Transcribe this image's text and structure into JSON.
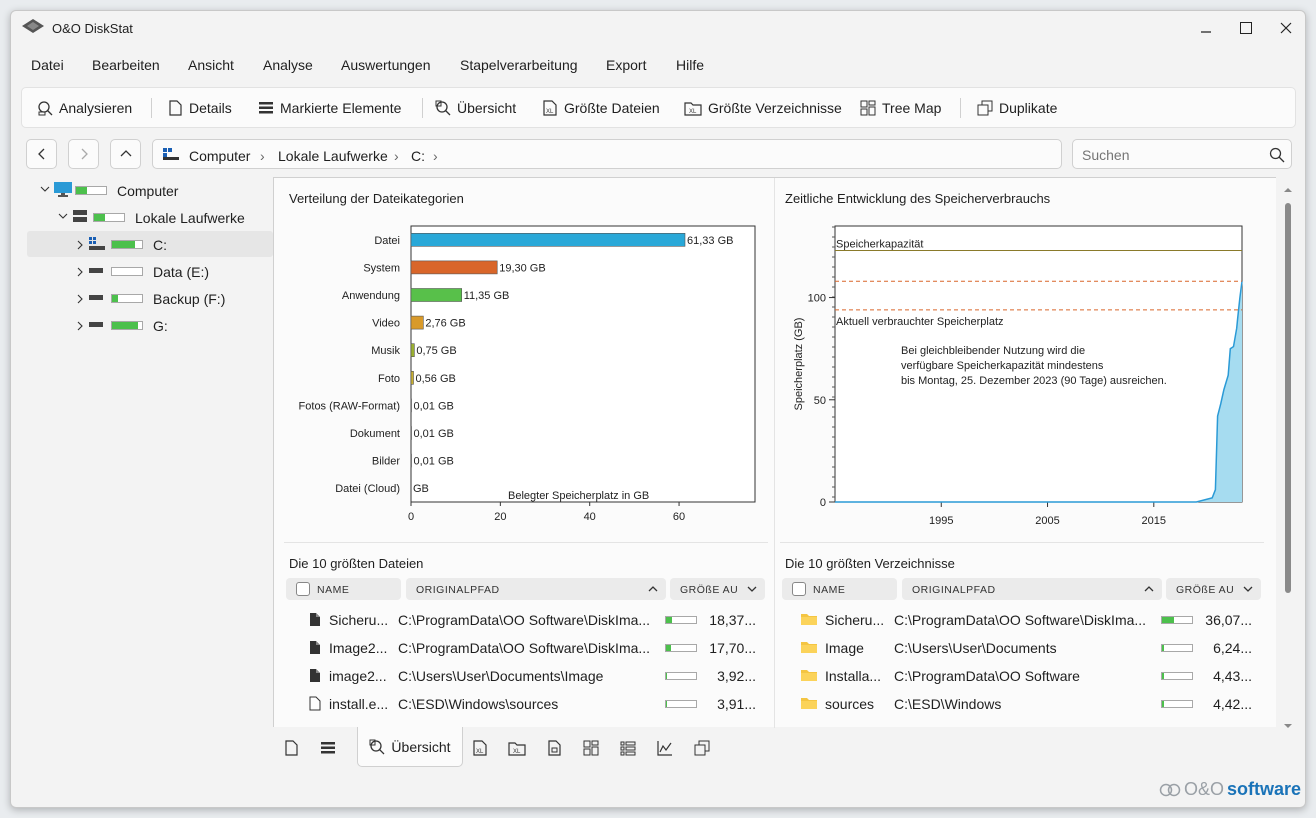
{
  "window": {
    "title": "O&O DiskStat"
  },
  "menu": [
    "Datei",
    "Bearbeiten",
    "Ansicht",
    "Analyse",
    "Auswertungen",
    "Stapelverarbeitung",
    "Export",
    "Hilfe"
  ],
  "toolbar": {
    "analyze": "Analysieren",
    "details": "Details",
    "marked": "Markierte Elemente",
    "overview": "Übersicht",
    "largest_files": "Größte Dateien",
    "largest_dirs": "Größte Verzeichnisse",
    "treemap": "Tree Map",
    "duplicates": "Duplikate"
  },
  "address": {
    "segments": [
      "Computer",
      "Lokale Laufwerke",
      "C:"
    ]
  },
  "search": {
    "placeholder": "Suchen"
  },
  "tree": [
    {
      "label": "Computer",
      "level": 0,
      "usage": 0.35
    },
    {
      "label": "Lokale Laufwerke",
      "level": 1,
      "usage": 0.35
    },
    {
      "label": "C:",
      "level": 2,
      "usage": 0.75
    },
    {
      "label": "Data (E:)",
      "level": 2,
      "usage": 0.0
    },
    {
      "label": "Backup (F:)",
      "level": 2,
      "usage": 0.2
    },
    {
      "label": "G:",
      "level": 2,
      "usage": 0.85
    }
  ],
  "panels": {
    "categories_title": "Verteilung der Dateikategorien",
    "timeline_title": "Zeitliche Entwicklung des Speicherverbrauchs",
    "files_title": "Die 10 größten Dateien",
    "dirs_title": "Die 10 größten Verzeichnisse"
  },
  "chart_data": [
    {
      "type": "bar",
      "orientation": "horizontal",
      "categories": [
        "Datei",
        "System",
        "Anwendung",
        "Video",
        "Musik",
        "Foto",
        "Fotos (RAW-Format)",
        "Dokument",
        "Bilder",
        "Datei (Cloud)"
      ],
      "values": [
        61.33,
        19.3,
        11.35,
        2.76,
        0.75,
        0.56,
        0.01,
        0.01,
        0.01,
        0
      ],
      "value_labels": [
        "61,33 GB",
        "19,30 GB",
        "11,35 GB",
        "2,76 GB",
        "0,75 GB",
        "0,56 GB",
        "0,01 GB",
        "0,01 GB",
        "0,01 GB",
        "GB"
      ],
      "colors": [
        "#29a8d8",
        "#d9662a",
        "#58c04a",
        "#d99a2a",
        "#9ab030",
        "#c9b030",
        "#999999",
        "#999999",
        "#999999",
        "#999999"
      ],
      "xlabel": "Belegter Speicherplatz in GB",
      "xticks": [
        0,
        20,
        40,
        60
      ],
      "xlim": [
        0,
        77
      ]
    },
    {
      "type": "area",
      "ylabel": "Speicherplatz (GB)",
      "yticks": [
        0,
        50,
        100
      ],
      "ylim": [
        0,
        135
      ],
      "xticks": [
        1995,
        2005,
        2015
      ],
      "xlim": [
        1985,
        2023.3
      ],
      "capacity_label": "Speicherkapazität",
      "used_label": "Aktuell verbrauchter Speicherplatz",
      "capacity": 123,
      "dashed_levels": [
        108,
        94
      ],
      "note": [
        "Bei gleichbleibender Nutzung wird die",
        "verfügbare Speicherkapazität mindestens",
        "bis Montag, 25. Dezember 2023 (90 Tage) ausreichen."
      ],
      "x": [
        1985,
        2015,
        2019,
        2020.5,
        2020.8,
        2021,
        2021.3,
        2021.6,
        2022,
        2022.2,
        2022.5,
        2022.8,
        2022.9,
        2023.1,
        2023.3
      ],
      "y": [
        0,
        0,
        0,
        2,
        6,
        42,
        48,
        55,
        62,
        75,
        76,
        85,
        90,
        100,
        108
      ]
    }
  ],
  "files_table": {
    "headers": {
      "name": "NAME",
      "path": "ORIGINALPFAD",
      "size": "GRÖßE AU"
    },
    "rows": [
      {
        "name": "Sicheru...",
        "path": "C:\\ProgramData\\OO Software\\DiskIma...",
        "size": "18,37...",
        "fill": 0.2,
        "icon": "dark"
      },
      {
        "name": "Image2...",
        "path": "C:\\ProgramData\\OO Software\\DiskIma...",
        "size": "17,70...",
        "fill": 0.18,
        "icon": "dark"
      },
      {
        "name": "image2...",
        "path": "C:\\Users\\User\\Documents\\Image",
        "size": "3,92...",
        "fill": 0.04,
        "icon": "dark"
      },
      {
        "name": "install.e...",
        "path": "C:\\ESD\\Windows\\sources",
        "size": "3,91...",
        "fill": 0.04,
        "icon": "light"
      }
    ]
  },
  "dirs_table": {
    "headers": {
      "name": "NAME",
      "path": "ORIGINALPFAD",
      "size": "GRÖßE AU"
    },
    "rows": [
      {
        "name": "Sicheru...",
        "path": "C:\\ProgramData\\OO Software\\DiskIma...",
        "size": "36,07...",
        "fill": 0.4
      },
      {
        "name": "Image",
        "path": "C:\\Users\\User\\Documents",
        "size": "6,24...",
        "fill": 0.07
      },
      {
        "name": "Installa...",
        "path": "C:\\ProgramData\\OO Software",
        "size": "4,43...",
        "fill": 0.05
      },
      {
        "name": "sources",
        "path": "C:\\ESD\\Windows",
        "size": "4,42...",
        "fill": 0.05
      }
    ]
  },
  "bottom": {
    "active_tab": "Übersicht"
  },
  "brand": {
    "prefix": "O&O",
    "name": "software"
  }
}
